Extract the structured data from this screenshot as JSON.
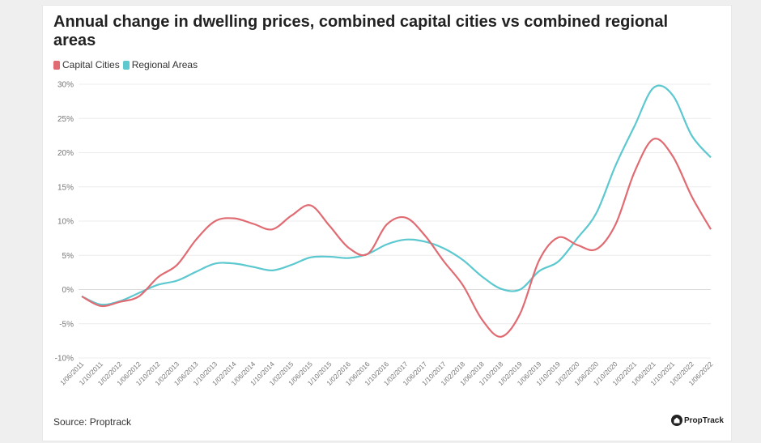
{
  "header": {
    "title": "Annual change in dwelling prices, combined capital cities vs combined regional areas"
  },
  "footer": {
    "source": "Source: Proptrack",
    "logo_text": "PropTrack"
  },
  "colors": {
    "capital": "#e06b72",
    "regional": "#5cc8cf",
    "grid": "#ececec"
  },
  "chart_data": {
    "type": "line",
    "title": "Annual change in dwelling prices, combined capital cities vs combined regional areas",
    "y_ticks": [
      "30%",
      "25%",
      "20%",
      "15%",
      "10%",
      "5%",
      "0%",
      "-5%",
      "-10%"
    ],
    "ylim": [
      -10,
      30
    ],
    "grid": true,
    "legend": "top-left",
    "x_ticks": [
      "1/06/2011",
      "1/10/2011",
      "1/02/2012",
      "1/06/2012",
      "1/10/2012",
      "1/02/2013",
      "1/06/2013",
      "1/10/2013",
      "1/02/2014",
      "1/06/2014",
      "1/10/2014",
      "1/02/2015",
      "1/06/2015",
      "1/10/2015",
      "1/02/2016",
      "1/06/2016",
      "1/10/2016",
      "1/02/2017",
      "1/06/2017",
      "1/10/2017",
      "1/02/2018",
      "1/06/2018",
      "1/10/2018",
      "1/02/2019",
      "1/06/2019",
      "1/10/2019",
      "1/02/2020",
      "1/06/2020",
      "1/10/2020",
      "1/02/2021",
      "1/06/2021",
      "1/10/2021",
      "1/02/2022",
      "1/06/2022"
    ],
    "series": [
      {
        "name": "Capital Cities",
        "values": [
          -1.0,
          -2.4,
          -1.8,
          -1.0,
          1.8,
          3.6,
          7.3,
          10.0,
          10.4,
          9.6,
          8.8,
          10.8,
          12.3,
          9.3,
          6.1,
          5.2,
          9.5,
          10.5,
          7.9,
          4.1,
          0.6,
          -4.4,
          -6.9,
          -3.5,
          4.3,
          7.6,
          6.5,
          5.9,
          9.5,
          17.2,
          22.0,
          19.5,
          13.6,
          8.8
        ]
      },
      {
        "name": "Regional Areas",
        "values": [
          -1.0,
          -2.2,
          -1.7,
          -0.5,
          0.7,
          1.3,
          2.6,
          3.8,
          3.8,
          3.3,
          2.8,
          3.6,
          4.7,
          4.8,
          4.6,
          5.2,
          6.6,
          7.3,
          7.0,
          6.0,
          4.3,
          1.9,
          0.1,
          0.0,
          2.7,
          4.1,
          7.5,
          11.2,
          18.1,
          23.9,
          29.5,
          28.4,
          22.5,
          19.3
        ]
      }
    ]
  }
}
